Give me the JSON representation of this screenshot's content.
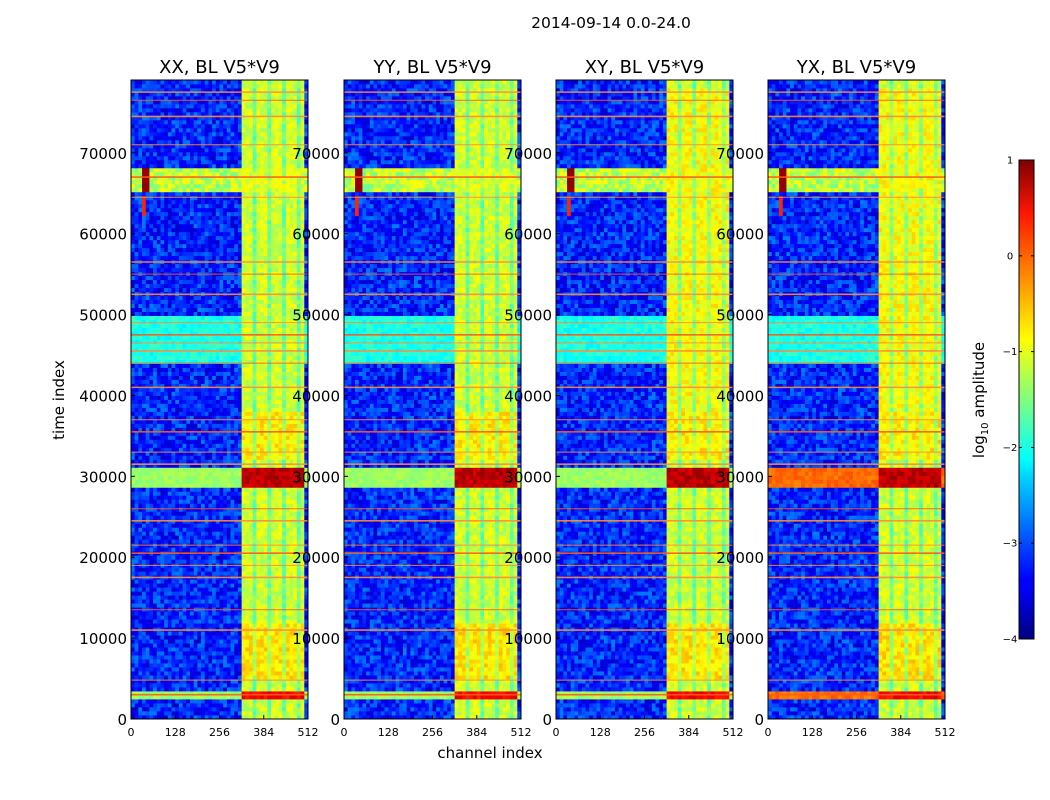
{
  "chart_data": {
    "type": "heatmap",
    "title": "2014-09-14 0.0-24.0",
    "xlabel": "channel index",
    "ylabel": "time index",
    "xlim": [
      0,
      512
    ],
    "ylim": [
      0,
      79000
    ],
    "x_ticks": [
      0,
      128,
      256,
      384,
      512
    ],
    "x_tick_labels": [
      "0",
      "128",
      "256",
      "384",
      "512"
    ],
    "y_ticks": [
      0,
      10000,
      20000,
      30000,
      40000,
      50000,
      60000,
      70000
    ],
    "y_tick_labels": [
      "0",
      "10000",
      "20000",
      "30000",
      "40000",
      "50000",
      "60000",
      "70000"
    ],
    "panels": [
      {
        "title": "XX, BL V5*V9"
      },
      {
        "title": "YY, BL V5*V9"
      },
      {
        "title": "XY, BL V5*V9"
      },
      {
        "title": "YX, BL V5*V9"
      }
    ],
    "colorbar": {
      "label_main": "log",
      "label_sub": "10",
      "label_rest": " amplitude",
      "range": [
        -4,
        1
      ],
      "ticks": [
        -4,
        -3,
        -2,
        -1,
        0,
        1
      ],
      "tick_labels": [
        "−4",
        "−3",
        "−2",
        "−1",
        "0",
        "1"
      ],
      "colormap": "jet"
    },
    "features": {
      "band_channels": [
        320,
        496
      ],
      "band_level": -1.1,
      "background_level": -3.2,
      "strong_rows": [
        [
          2600,
          3600,
          0.6
        ],
        [
          28500,
          31000,
          0.9
        ]
      ],
      "rfi_rows": [
        3000,
        4800,
        11000,
        13500,
        17500,
        19000,
        20500,
        21500,
        24500,
        26000,
        31500,
        33000,
        35500,
        37000,
        41000,
        44000,
        45500,
        46500,
        47500,
        49000,
        52500,
        55000,
        56500,
        64500,
        67000,
        71000,
        74500,
        76500,
        77500
      ],
      "bright_region": [
        65000,
        68000
      ],
      "spot_channel": 40
    }
  }
}
